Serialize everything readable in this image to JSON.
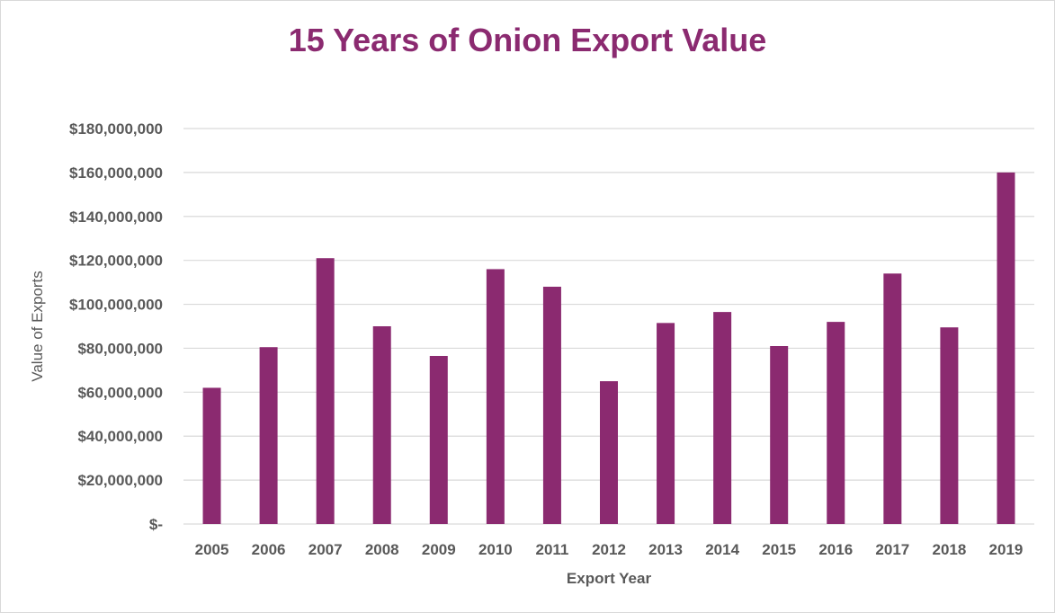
{
  "colors": {
    "bar": "#8b2a70",
    "title": "#8b2a70",
    "grid": "#d9d9d9",
    "text": "#595959"
  },
  "chart_data": {
    "type": "bar",
    "title": "15 Years of Onion Export Value",
    "xlabel": "Export Year",
    "ylabel": "Value of Exports",
    "categories": [
      "2005",
      "2006",
      "2007",
      "2008",
      "2009",
      "2010",
      "2011",
      "2012",
      "2013",
      "2014",
      "2015",
      "2016",
      "2017",
      "2018",
      "2019"
    ],
    "values": [
      62000000,
      80500000,
      121000000,
      90000000,
      76500000,
      116000000,
      108000000,
      65000000,
      91500000,
      96500000,
      81000000,
      92000000,
      114000000,
      89500000,
      160000000
    ],
    "ylim": [
      0,
      180000000
    ],
    "yticks": [
      0,
      20000000,
      40000000,
      60000000,
      80000000,
      100000000,
      120000000,
      140000000,
      160000000,
      180000000
    ],
    "ytick_labels": [
      "$-",
      "$20,000,000",
      "$40,000,000",
      "$60,000,000",
      "$80,000,000",
      "$100,000,000",
      "$120,000,000",
      "$140,000,000",
      "$160,000,000",
      "$180,000,000"
    ],
    "grid": true,
    "legend": "none"
  }
}
